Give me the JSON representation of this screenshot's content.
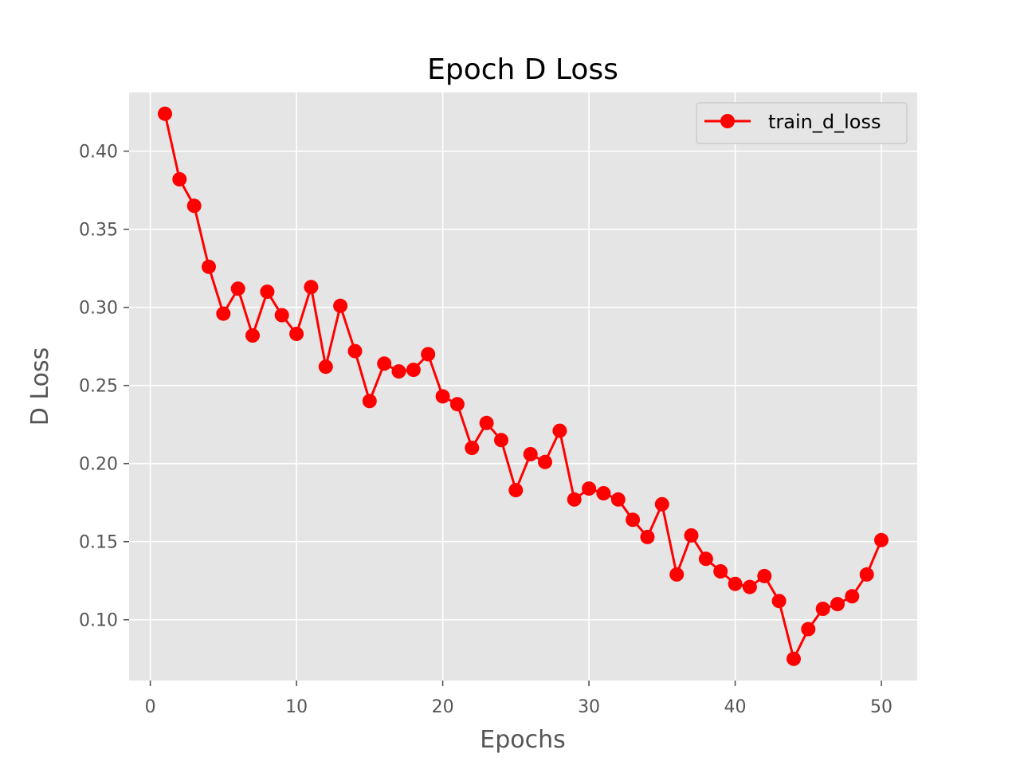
{
  "chart_data": {
    "type": "line",
    "title": "Epoch D Loss",
    "xlabel": "Epochs",
    "ylabel": "D Loss",
    "xlim": [
      -1.45,
      52.45
    ],
    "ylim": [
      0.0611,
      0.4376
    ],
    "xticks": [
      0,
      10,
      20,
      30,
      40,
      50
    ],
    "xtick_labels": [
      "0",
      "10",
      "20",
      "30",
      "40",
      "50"
    ],
    "yticks": [
      0.1,
      0.15,
      0.2,
      0.25,
      0.3,
      0.35,
      0.4
    ],
    "ytick_labels": [
      "0.10",
      "0.15",
      "0.20",
      "0.25",
      "0.30",
      "0.35",
      "0.40"
    ],
    "grid": true,
    "legend_position": "top-right",
    "series": [
      {
        "name": "train_d_loss",
        "color": "#ff0000",
        "marker": "circle",
        "x": [
          1,
          2,
          3,
          4,
          5,
          6,
          7,
          8,
          9,
          10,
          11,
          12,
          13,
          14,
          15,
          16,
          17,
          18,
          19,
          20,
          21,
          22,
          23,
          24,
          25,
          26,
          27,
          28,
          29,
          30,
          31,
          32,
          33,
          34,
          35,
          36,
          37,
          38,
          39,
          40,
          41,
          42,
          43,
          44,
          45,
          46,
          47,
          48,
          49,
          50
        ],
        "values": [
          0.424,
          0.382,
          0.365,
          0.326,
          0.296,
          0.312,
          0.282,
          0.31,
          0.295,
          0.283,
          0.313,
          0.262,
          0.301,
          0.272,
          0.24,
          0.264,
          0.259,
          0.26,
          0.27,
          0.243,
          0.238,
          0.21,
          0.226,
          0.215,
          0.183,
          0.206,
          0.201,
          0.221,
          0.177,
          0.184,
          0.181,
          0.177,
          0.164,
          0.153,
          0.174,
          0.129,
          0.154,
          0.139,
          0.131,
          0.123,
          0.121,
          0.128,
          0.112,
          0.075,
          0.094,
          0.107,
          0.11,
          0.115,
          0.129,
          0.151
        ]
      }
    ]
  },
  "colors": {
    "plot_background": "#e5e5e5",
    "grid": "#ffffff",
    "tick_text": "#555555"
  }
}
